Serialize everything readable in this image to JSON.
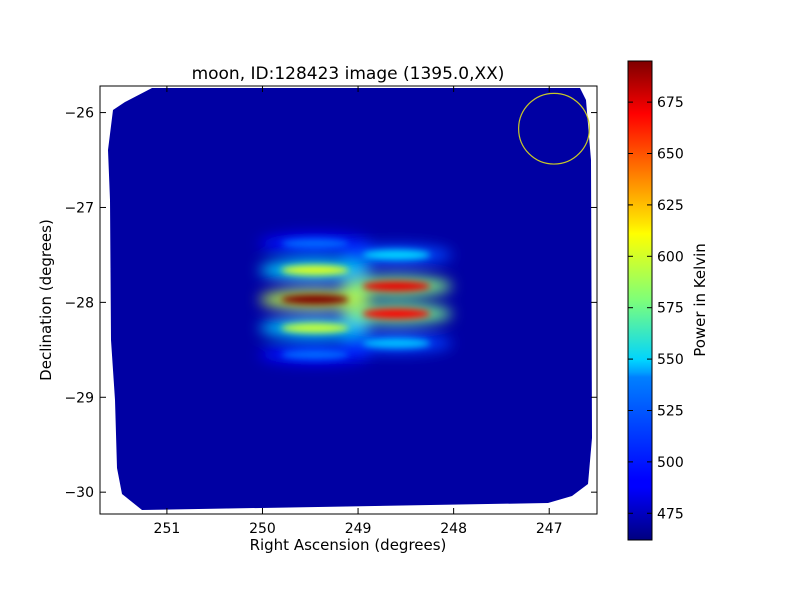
{
  "chart_data": {
    "type": "heatmap",
    "title": "moon, ID:128423 image (1395.0,XX)",
    "xlabel": "Right Ascension (degrees)",
    "ylabel": "Declination (degrees)",
    "xlim": [
      251.7,
      246.5
    ],
    "ylim": [
      -30.23,
      -25.72
    ],
    "x_ticks": [
      251,
      250,
      249,
      248,
      247
    ],
    "x_tick_labels": [
      "251",
      "250",
      "249",
      "248",
      "247"
    ],
    "y_ticks": [
      -26,
      -27,
      -28,
      -29,
      -30
    ],
    "y_tick_labels": [
      "−26",
      "−27",
      "−28",
      "−29",
      "−30"
    ],
    "colorbar": {
      "label": "Power in Kelvin",
      "colormap": "jet",
      "range": [
        462,
        695
      ],
      "ticks": [
        475,
        500,
        525,
        550,
        575,
        600,
        625,
        650,
        675
      ],
      "tick_labels": [
        "475",
        "500",
        "525",
        "550",
        "575",
        "600",
        "625",
        "650",
        "675"
      ]
    },
    "background_level": 470,
    "sources": [
      {
        "ra": 249.45,
        "dec": -27.66,
        "power": 600
      },
      {
        "ra": 249.45,
        "dec": -27.97,
        "power": 695
      },
      {
        "ra": 249.45,
        "dec": -28.27,
        "power": 595
      },
      {
        "ra": 249.45,
        "dec": -28.55,
        "power": 515
      },
      {
        "ra": 249.45,
        "dec": -27.38,
        "power": 515
      },
      {
        "ra": 248.6,
        "dec": -27.5,
        "power": 540
      },
      {
        "ra": 248.6,
        "dec": -27.83,
        "power": 670
      },
      {
        "ra": 248.6,
        "dec": -28.12,
        "power": 665
      },
      {
        "ra": 248.6,
        "dec": -28.43,
        "power": 535
      }
    ],
    "circle_marker": {
      "ra": 246.95,
      "dec": -26.17,
      "radius_deg": 0.37,
      "color": "#c8c828"
    }
  }
}
